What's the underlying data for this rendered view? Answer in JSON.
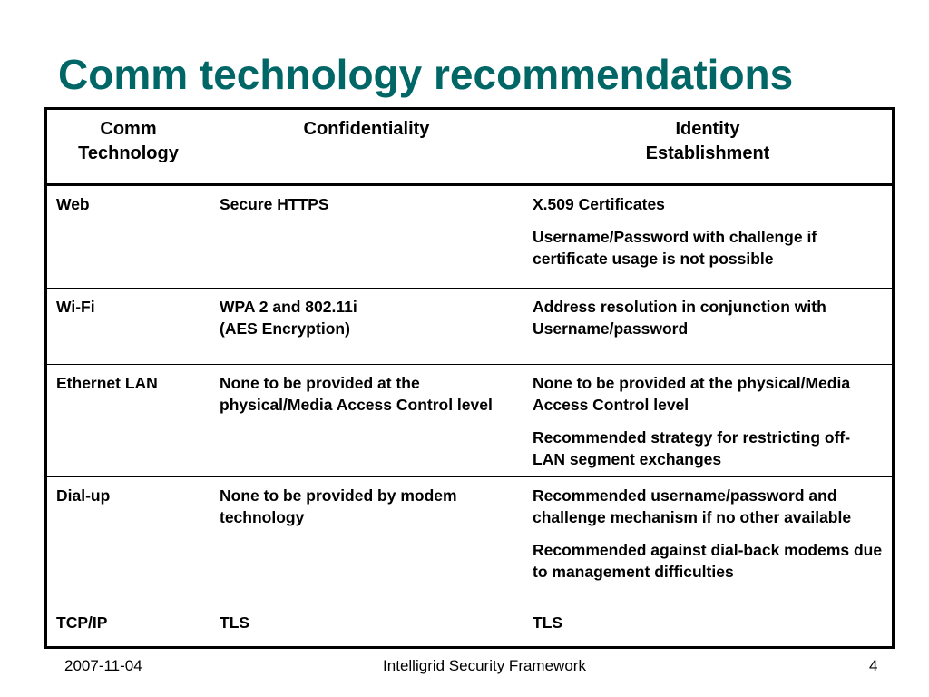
{
  "title": "Comm technology recommendations",
  "table": {
    "headers": [
      [
        "Comm",
        "Technology"
      ],
      [
        "Confidentiality"
      ],
      [
        "Identity",
        "Establishment"
      ]
    ],
    "rows": [
      {
        "technology": "Web",
        "confidentiality": "Secure HTTPS",
        "identity": [
          "X.509 Certificates",
          "Username/Password with challenge if certificate usage is not possible"
        ]
      },
      {
        "technology": "Wi-Fi",
        "confidentiality": "WPA 2 and 802.11i\n(AES Encryption)",
        "identity": [
          "Address resolution in conjunction with Username/password"
        ]
      },
      {
        "technology": "Ethernet LAN",
        "confidentiality": "None to be provided at the physical/Media Access Control level",
        "identity": [
          "None to be provided at the physical/Media Access Control level",
          "Recommended strategy for restricting off-LAN segment exchanges"
        ]
      },
      {
        "technology": "Dial-up",
        "confidentiality": "None to be provided by modem technology",
        "identity": [
          "Recommended username/password and challenge mechanism if no other available",
          "Recommended against dial-back modems due to management difficulties"
        ]
      },
      {
        "technology": "TCP/IP",
        "confidentiality": "TLS",
        "identity": [
          "TLS"
        ]
      }
    ]
  },
  "footer": {
    "date": "2007-11-04",
    "center": "Intelligrid Security Framework",
    "page": "4"
  },
  "colors": {
    "title": "#006666",
    "text": "#000000",
    "background": "#ffffff"
  }
}
